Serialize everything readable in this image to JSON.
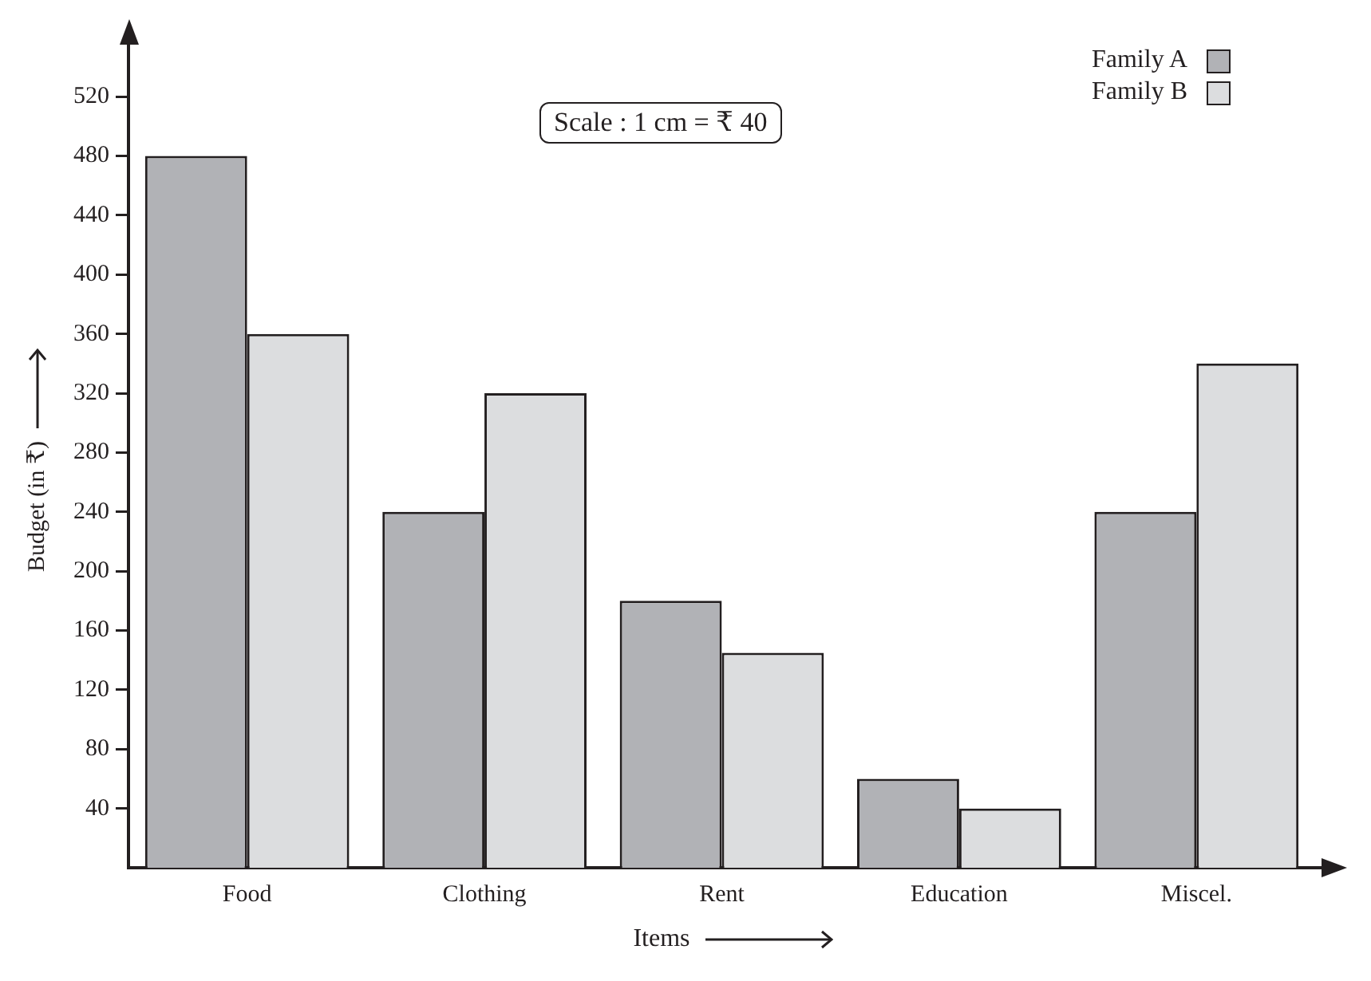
{
  "chart_data": {
    "type": "bar",
    "xlabel": "Items",
    "ylabel": "Budget (in ₹)",
    "categories": [
      "Food",
      "Clothing",
      "Rent",
      "Education",
      "Miscel."
    ],
    "series": [
      {
        "name": "Family A",
        "color": "#b1b2b6",
        "values": [
          480,
          240,
          180,
          60,
          240
        ]
      },
      {
        "name": "Family B",
        "color": "#dcdddf",
        "values": [
          360,
          320,
          145,
          40,
          340
        ]
      }
    ],
    "ylim": [
      0,
      540
    ],
    "yticks": [
      40,
      80,
      120,
      160,
      200,
      240,
      280,
      320,
      360,
      400,
      440,
      480,
      520
    ],
    "annotations": [
      "Scale : 1 cm = ₹ 40"
    ],
    "grid": false,
    "legend": "top right"
  }
}
